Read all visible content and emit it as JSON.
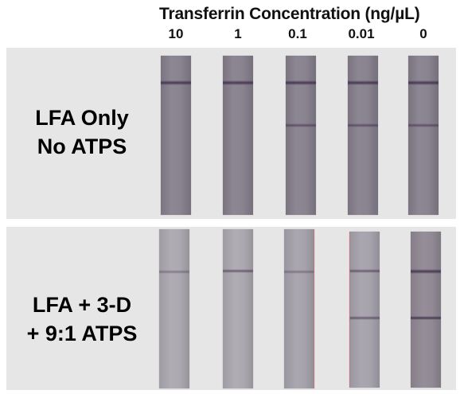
{
  "header": {
    "title": "Transferrin Concentration (ng/µL)",
    "concentrations": [
      "10",
      "1",
      "0.1",
      "0.01",
      "0"
    ]
  },
  "rows": [
    {
      "line1": "LFA Only",
      "line2": "No ATPS"
    },
    {
      "line1": "LFA + 3-D",
      "line2": "+ 9:1 ATPS"
    }
  ]
}
